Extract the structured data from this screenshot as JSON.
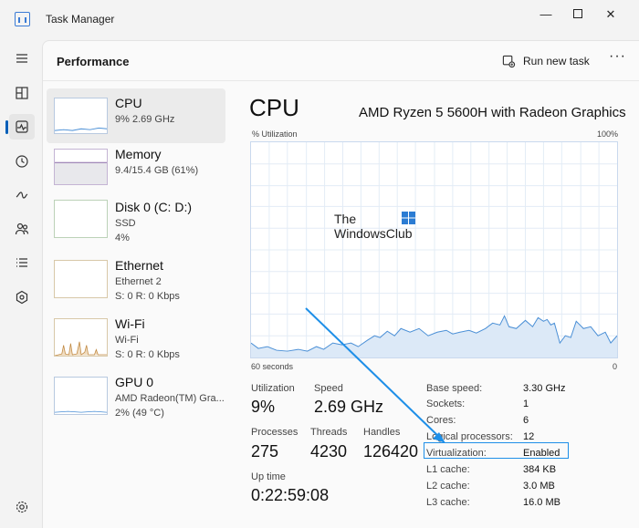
{
  "window": {
    "title": "Task Manager"
  },
  "header": {
    "title": "Performance",
    "run_task_label": "Run new task"
  },
  "devices": [
    {
      "name": "CPU",
      "lines": [
        "9%  2.69 GHz"
      ]
    },
    {
      "name": "Memory",
      "lines": [
        "9.4/15.4 GB (61%)"
      ]
    },
    {
      "name": "Disk 0 (C: D:)",
      "lines": [
        "SSD",
        "4%"
      ]
    },
    {
      "name": "Ethernet",
      "lines": [
        "Ethernet 2",
        "S: 0  R: 0 Kbps"
      ]
    },
    {
      "name": "Wi-Fi",
      "lines": [
        "Wi-Fi",
        "S: 0  R: 0 Kbps"
      ]
    },
    {
      "name": "GPU 0",
      "lines": [
        "AMD Radeon(TM) Gra...",
        "2%  (49 °C)"
      ]
    }
  ],
  "detail": {
    "title": "CPU",
    "model": "AMD Ryzen 5 5600H with Radeon Graphics",
    "graph_y_label": "% Utilization",
    "graph_y_max": "100%",
    "graph_x_label": "60 seconds",
    "graph_x_min": "0",
    "stats": {
      "utilization_label": "Utilization",
      "utilization_value": "9%",
      "speed_label": "Speed",
      "speed_value": "2.69 GHz",
      "processes_label": "Processes",
      "processes_value": "275",
      "threads_label": "Threads",
      "threads_value": "4230",
      "handles_label": "Handles",
      "handles_value": "126420",
      "uptime_label": "Up time",
      "uptime_value": "0:22:59:08"
    },
    "specs": [
      {
        "label": "Base speed:",
        "value": "3.30 GHz"
      },
      {
        "label": "Sockets:",
        "value": "1"
      },
      {
        "label": "Cores:",
        "value": "6"
      },
      {
        "label": "Logical processors:",
        "value": "12"
      },
      {
        "label": "Virtualization:",
        "value": "Enabled"
      },
      {
        "label": "L1 cache:",
        "value": "384 KB"
      },
      {
        "label": "L2 cache:",
        "value": "3.0 MB"
      },
      {
        "label": "L3 cache:",
        "value": "16.0 MB"
      }
    ]
  },
  "watermark": {
    "line1": "The",
    "line2": "WindowsClub"
  },
  "colors": {
    "accent": "#005fb8",
    "graph_line": "#4a8fd6",
    "graph_fill": "#dce9f7",
    "highlight": "#1e8fe8"
  }
}
